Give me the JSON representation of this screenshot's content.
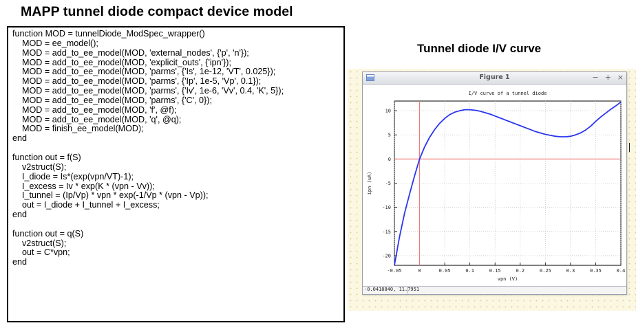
{
  "slide": {
    "left_title": "MAPP tunnel diode compact device model",
    "right_title": "Tunnel diode I/V curve"
  },
  "code": {
    "lines": [
      "function MOD = tunnelDiode_ModSpec_wrapper()",
      "    MOD = ee_model();",
      "    MOD = add_to_ee_model(MOD, 'external_nodes', {'p', 'n'});",
      "    MOD = add_to_ee_model(MOD, 'explicit_outs', {'ipn'});",
      "    MOD = add_to_ee_model(MOD, 'parms', {'Is', 1e-12, 'VT', 0.025});",
      "    MOD = add_to_ee_model(MOD, 'parms', {'Ip', 1e-5, 'Vp', 0.1});",
      "    MOD = add_to_ee_model(MOD, 'parms', {'Iv', 1e-6, 'Vv', 0.4, 'K', 5});",
      "    MOD = add_to_ee_model(MOD, 'parms', {'C', 0});",
      "    MOD = add_to_ee_model(MOD, 'f', @f);",
      "    MOD = add_to_ee_model(MOD, 'q', @q);",
      "    MOD = finish_ee_model(MOD);",
      "end",
      "",
      "function out = f(S)",
      "    v2struct(S);",
      "    I_diode = Is*(exp(vpn/VT)-1);",
      "    I_excess = Iv * exp(K * (vpn - Vv));",
      "    I_tunnel = (Ip/Vp) * vpn * exp(-1/Vp * (vpn - Vp));",
      "    out = I_diode + I_tunnel + I_excess;",
      "end",
      "",
      "function out = q(S)",
      "    v2struct(S);",
      "    out = C*vpn;",
      "end"
    ]
  },
  "figure_window": {
    "title": "Figure 1",
    "buttons": {
      "minimize": "−",
      "maximize": "+",
      "close": "×"
    },
    "status": "-0.0418840,  11.7951",
    "icon": "figure-app-icon"
  },
  "chart_data": {
    "type": "line",
    "title": "I/V curve of a tunnel diode",
    "xlabel": "vpn (V)",
    "ylabel": "ipn (uA)",
    "xlim": [
      -0.05,
      0.4
    ],
    "ylim": [
      -22,
      12
    ],
    "xticks": [
      "-0.05",
      "0",
      "0.05",
      "0.1",
      "0.15",
      "0.2",
      "0.25",
      "0.3",
      "0.35",
      "0.4"
    ],
    "yticks": [
      "10",
      "5",
      "0",
      "-5",
      "-10",
      "-15",
      "-20"
    ],
    "grid": true,
    "colors": {
      "line": "#2a35f0",
      "zero_axes": "#f07878",
      "grid": "#b8b8b8"
    },
    "series": [
      {
        "x": [
          -0.05,
          -0.04,
          -0.03,
          -0.02,
          -0.01,
          0,
          0.01,
          0.02,
          0.03,
          0.04,
          0.05,
          0.06,
          0.07,
          0.08,
          0.09,
          0.1,
          0.11,
          0.12,
          0.13,
          0.14,
          0.15,
          0.16,
          0.17,
          0.18,
          0.19,
          0.2,
          0.21,
          0.22,
          0.23,
          0.24,
          0.25,
          0.26,
          0.27,
          0.28,
          0.29,
          0.3,
          0.31,
          0.32,
          0.33,
          0.34,
          0.35,
          0.36,
          0.37,
          0.38,
          0.39,
          0.4
        ],
        "y": [
          -22.4,
          -16.2,
          -11.3,
          -7.3,
          -3.5,
          0.0,
          2.5,
          4.5,
          6.1,
          7.4,
          8.4,
          9.2,
          9.7,
          10.0,
          10.2,
          10.2,
          10.1,
          9.9,
          9.6,
          9.3,
          8.9,
          8.5,
          8.1,
          7.7,
          7.3,
          6.9,
          6.5,
          6.1,
          5.7,
          5.4,
          5.1,
          4.9,
          4.7,
          4.6,
          4.6,
          4.7,
          5.0,
          5.4,
          6.0,
          6.8,
          7.8,
          8.7,
          9.5,
          10.3,
          11.0,
          11.8
        ]
      }
    ]
  }
}
